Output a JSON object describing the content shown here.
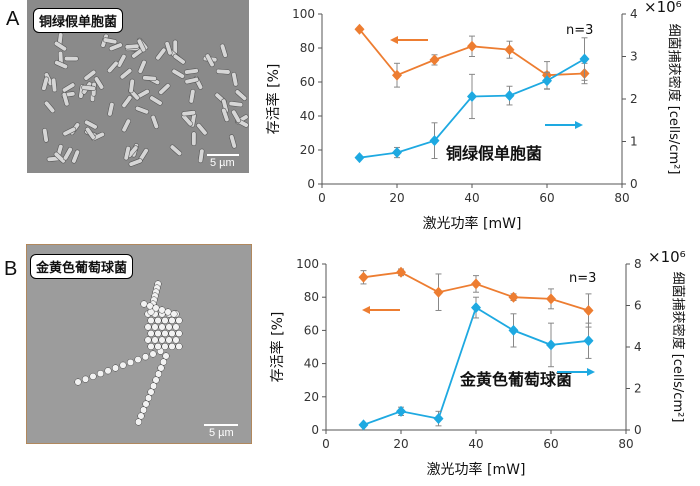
{
  "panels": [
    {
      "letter": "A",
      "micro_label": "铜绿假单胞菌",
      "scale_label": "5 µm"
    },
    {
      "letter": "B",
      "micro_label": "金黄色葡萄球菌",
      "scale_label": "5 µm"
    }
  ],
  "colors": {
    "survival": "#ED7D31",
    "capture": "#1EA9E1",
    "axis": "#555555"
  },
  "chart_data": [
    {
      "type": "line",
      "x": [
        10,
        20,
        30,
        40,
        50,
        60,
        70
      ],
      "xlim": [
        0,
        80
      ],
      "xticks": [
        "0",
        "20",
        "40",
        "60",
        "80"
      ],
      "xlabel": "激光功率 [mW]",
      "ylabel_left": "存活率 [%]",
      "ylim_left": [
        0,
        100
      ],
      "yticks_left": [
        "0",
        "20",
        "40",
        "60",
        "80",
        "100"
      ],
      "ylabel_right": "细菌捕获密度 [cells/cm²]",
      "ylim_right": [
        0,
        4
      ],
      "yticks_right": [
        "0",
        "1",
        "2",
        "3",
        "4"
      ],
      "right_multiplier": "×10⁶",
      "annotation_n": "n=3",
      "species_label": "铜绿假单胞菌",
      "series": [
        {
          "role": "survival",
          "axis": "left",
          "marker": "diamond",
          "values": [
            91,
            64,
            73,
            81,
            79,
            64,
            65
          ],
          "errors": [
            0,
            7,
            3,
            6,
            5,
            8,
            6
          ]
        },
        {
          "role": "capture",
          "axis": "right",
          "marker": "diamond",
          "values": [
            0.62,
            0.74,
            1.02,
            2.06,
            2.08,
            2.43,
            2.94
          ],
          "errors": [
            0,
            0.12,
            0.42,
            0.52,
            0.22,
            0.2,
            0.5
          ]
        }
      ],
      "grid": false
    },
    {
      "type": "line",
      "x": [
        10,
        20,
        30,
        40,
        50,
        60,
        70
      ],
      "xlim": [
        0,
        80
      ],
      "xticks": [
        "0",
        "20",
        "40",
        "60",
        "80"
      ],
      "xlabel": "激光功率 [mW]",
      "ylabel_left": "存活率 [%]",
      "ylim_left": [
        0,
        100
      ],
      "yticks_left": [
        "0",
        "20",
        "40",
        "60",
        "80",
        "100"
      ],
      "ylabel_right": "细菌捕获密度 [cells/cm²]",
      "ylim_right": [
        0,
        8
      ],
      "yticks_right": [
        "0",
        "2",
        "4",
        "6",
        "8"
      ],
      "right_multiplier": "×10⁶",
      "annotation_n": "n=3",
      "species_label": "金黄色葡萄球菌",
      "series": [
        {
          "role": "survival",
          "axis": "left",
          "marker": "diamond",
          "values": [
            92,
            95,
            83,
            88,
            80,
            79,
            72
          ],
          "errors": [
            4,
            2,
            11,
            5,
            2,
            6,
            10
          ]
        },
        {
          "role": "capture",
          "axis": "right",
          "marker": "diamond",
          "values": [
            0.25,
            0.9,
            0.55,
            5.9,
            4.8,
            4.1,
            4.3
          ],
          "errors": [
            0,
            0.2,
            0.35,
            0.5,
            0.8,
            1.05,
            0.85
          ]
        }
      ],
      "grid": false
    }
  ]
}
